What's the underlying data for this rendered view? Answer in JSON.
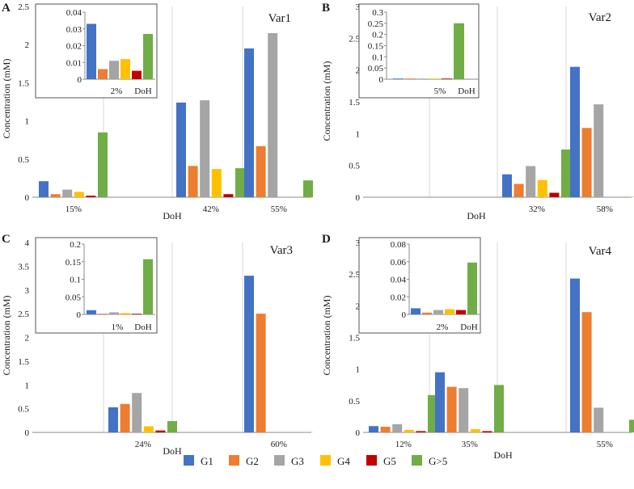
{
  "legend": [
    "G1",
    "G2",
    "G3",
    "G4",
    "G5",
    "G>5"
  ],
  "colors": [
    "#4472C4",
    "#ED7D31",
    "#A5A5A5",
    "#FFC000",
    "#C00000",
    "#70AD47"
  ],
  "chart_data": [
    {
      "type": "bar",
      "panel_label": "A",
      "title": "Var1",
      "xlabel": "DoH",
      "ylabel": "Concentration (mM)",
      "ylim": [
        0,
        2.5
      ],
      "yticks": [
        "0",
        "0.5",
        "1",
        "1.5",
        "2",
        "2.5"
      ],
      "categories": [
        "15%",
        "42%",
        "55%"
      ],
      "series": [
        {
          "name": "G1",
          "values": [
            0.21,
            1.24,
            1.95
          ]
        },
        {
          "name": "G2",
          "values": [
            0.04,
            0.41,
            0.67
          ]
        },
        {
          "name": "G3",
          "values": [
            0.1,
            1.27,
            2.15
          ]
        },
        {
          "name": "G4",
          "values": [
            0.07,
            0.37,
            0
          ]
        },
        {
          "name": "G5",
          "values": [
            0.02,
            0.04,
            0
          ]
        },
        {
          "name": "G>5",
          "values": [
            0.85,
            0.38,
            0.22
          ]
        }
      ],
      "inset": {
        "category": "2%",
        "xlabel": "DoH",
        "ylim": [
          0,
          0.04
        ],
        "yticks": [
          "0",
          "0.01",
          "0.02",
          "0.03",
          "0.04"
        ],
        "values": [
          0.033,
          0.006,
          0.011,
          0.012,
          0.005,
          0.027
        ]
      }
    },
    {
      "type": "bar",
      "panel_label": "B",
      "title": "Var2",
      "xlabel": "DoH",
      "ylabel": "Concentration (mM)",
      "ylim": [
        0,
        3
      ],
      "yticks": [
        "0",
        "0.5",
        "1",
        "1.5",
        "2",
        "2.5",
        "3"
      ],
      "categories": [
        "32%",
        "58%"
      ],
      "series": [
        {
          "name": "G1",
          "values": [
            0.36,
            2.05
          ]
        },
        {
          "name": "G2",
          "values": [
            0.21,
            1.09
          ]
        },
        {
          "name": "G3",
          "values": [
            0.49,
            1.46
          ]
        },
        {
          "name": "G4",
          "values": [
            0.27,
            0
          ]
        },
        {
          "name": "G5",
          "values": [
            0.07,
            0
          ]
        },
        {
          "name": "G>5",
          "values": [
            0.75,
            0.005
          ]
        }
      ],
      "inset": {
        "category": "5%",
        "xlabel": "DoH",
        "ylim": [
          0,
          0.3
        ],
        "yticks": [
          "0",
          "0.05",
          "0.1",
          "0.15",
          "0.2",
          "0.25",
          "0.3"
        ],
        "values": [
          0.001,
          0.001,
          0.001,
          0.002,
          0.001,
          0.25
        ]
      }
    },
    {
      "type": "bar",
      "panel_label": "C",
      "title": "Var3",
      "xlabel": "DoH",
      "ylabel": "Concentration (mM)",
      "ylim": [
        0,
        4
      ],
      "yticks": [
        "0",
        "0.5",
        "1",
        "1.5",
        "2",
        "2.5",
        "3",
        "3.5",
        "4"
      ],
      "categories": [
        "24%",
        "60%"
      ],
      "series": [
        {
          "name": "G1",
          "values": [
            0.53,
            3.3
          ]
        },
        {
          "name": "G2",
          "values": [
            0.6,
            2.5
          ]
        },
        {
          "name": "G3",
          "values": [
            0.83,
            0
          ]
        },
        {
          "name": "G4",
          "values": [
            0.13,
            0
          ]
        },
        {
          "name": "G5",
          "values": [
            0.04,
            0
          ]
        },
        {
          "name": "G>5",
          "values": [
            0.24,
            0.005
          ]
        }
      ],
      "inset": {
        "category": "1%",
        "xlabel": "DoH",
        "ylim": [
          0,
          0.2
        ],
        "yticks": [
          "0",
          "0.05",
          "0.1",
          "0.15",
          "0.2"
        ],
        "values": [
          0.012,
          0.002,
          0.006,
          0.004,
          0.001,
          0.157
        ]
      }
    },
    {
      "type": "bar",
      "panel_label": "D",
      "title": "Var4",
      "xlabel": "DoH",
      "ylabel": "Concentration (mM)",
      "ylim": [
        0,
        3
      ],
      "yticks": [
        "0",
        "0.5",
        "1",
        "1.5",
        "2",
        "2.5",
        "3"
      ],
      "categories": [
        "12%",
        "35%",
        "55%"
      ],
      "series": [
        {
          "name": "G1",
          "values": [
            0.1,
            0.95,
            2.43
          ]
        },
        {
          "name": "G2",
          "values": [
            0.09,
            0.72,
            1.9
          ]
        },
        {
          "name": "G3",
          "values": [
            0.13,
            0.7,
            0.39
          ]
        },
        {
          "name": "G4",
          "values": [
            0.04,
            0.05,
            0
          ]
        },
        {
          "name": "G5",
          "values": [
            0.02,
            0.02,
            0
          ]
        },
        {
          "name": "G>5",
          "values": [
            0.59,
            0.75,
            0.2
          ]
        }
      ],
      "inset": {
        "category": "2%",
        "xlabel": "DoH",
        "ylim": [
          0,
          0.08
        ],
        "yticks": [
          "0",
          "0.02",
          "0.04",
          "0.06",
          "0.08"
        ],
        "values": [
          0.007,
          0.002,
          0.005,
          0.006,
          0.005,
          0.059
        ]
      }
    }
  ]
}
